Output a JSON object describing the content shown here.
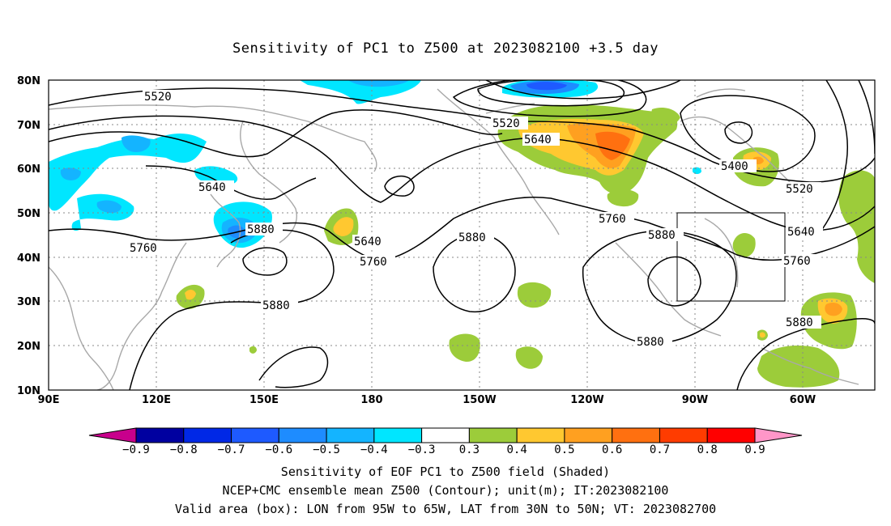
{
  "title": "Sensitivity of PC1 to Z500 at 2023082100 +3.5 day",
  "map": {
    "lat_labels": [
      "80N",
      "70N",
      "60N",
      "50N",
      "40N",
      "30N",
      "20N",
      "10N"
    ],
    "lon_labels": [
      "90E",
      "120E",
      "150E",
      "180",
      "150W",
      "120W",
      "90W",
      "60W"
    ],
    "contour_labels": [
      "5520",
      "5520",
      "5520",
      "5640",
      "5640",
      "5640",
      "5640",
      "5760",
      "5760",
      "5760",
      "5760",
      "5880",
      "5880",
      "5880",
      "5880",
      "5880",
      "5880",
      "5400"
    ],
    "box": {
      "lon_west": "95W",
      "lon_east": "65W",
      "lat_south": "30N",
      "lat_north": "50N"
    }
  },
  "colorbar": {
    "labels": [
      "−0.9",
      "−0.8",
      "−0.7",
      "−0.6",
      "−0.5",
      "−0.4",
      "−0.3",
      "0.3",
      "0.4",
      "0.5",
      "0.6",
      "0.7",
      "0.8",
      "0.9"
    ],
    "colors": [
      "#0000a0",
      "#0028e6",
      "#1e5aff",
      "#1e8cff",
      "#14b4ff",
      "#00e6ff",
      "#ffffff",
      "#9ccc3a",
      "#ffc830",
      "#ffa020",
      "#ff7010",
      "#ff3c00",
      "#ff0000"
    ],
    "left_arrow_color": "#c8008c",
    "right_arrow_color": "#ff96c8"
  },
  "caption": {
    "line1": "Sensitivity of EOF PC1 to Z500 field (Shaded)",
    "line2": "NCEP+CMC ensemble mean Z500 (Contour); unit(m); IT:2023082100",
    "line3": "Valid area (box): LON from 95W to 65W, LAT from 30N to 50N; VT: 2023082700"
  }
}
